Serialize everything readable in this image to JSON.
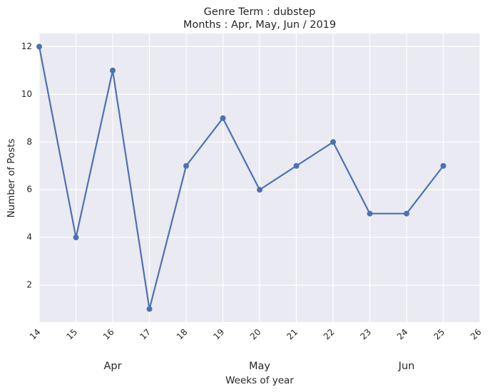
{
  "chart_data": {
    "type": "line",
    "title": "Genre Term : dubstep",
    "subtitle": "Months : Apr, May, Jun / 2019",
    "xlabel": "Weeks of year",
    "ylabel": "Number of Posts",
    "x_ticks": [
      "14",
      "15",
      "16",
      "17",
      "18",
      "19",
      "20",
      "21",
      "22",
      "23",
      "24",
      "25",
      "26"
    ],
    "y_ticks": [
      "2",
      "4",
      "6",
      "8",
      "10",
      "12"
    ],
    "month_labels": [
      {
        "label": "Apr",
        "week": 16
      },
      {
        "label": "May",
        "week": 20
      },
      {
        "label": "Jun",
        "week": 24
      }
    ],
    "xlim": [
      14,
      26
    ],
    "ylim": [
      0.45,
      12.55
    ],
    "grid": true,
    "series": [
      {
        "x": [
          14,
          15,
          16,
          17,
          18,
          19,
          20,
          21,
          22,
          23,
          24,
          25
        ],
        "values": [
          12,
          4,
          11,
          1,
          7,
          9,
          6,
          7,
          8,
          5,
          5,
          7
        ],
        "color": "#4c72b0",
        "marker": "circle"
      }
    ],
    "colors": {
      "plot_background": "#eaeaf2",
      "grid": "#ffffff",
      "text": "#262626"
    }
  }
}
